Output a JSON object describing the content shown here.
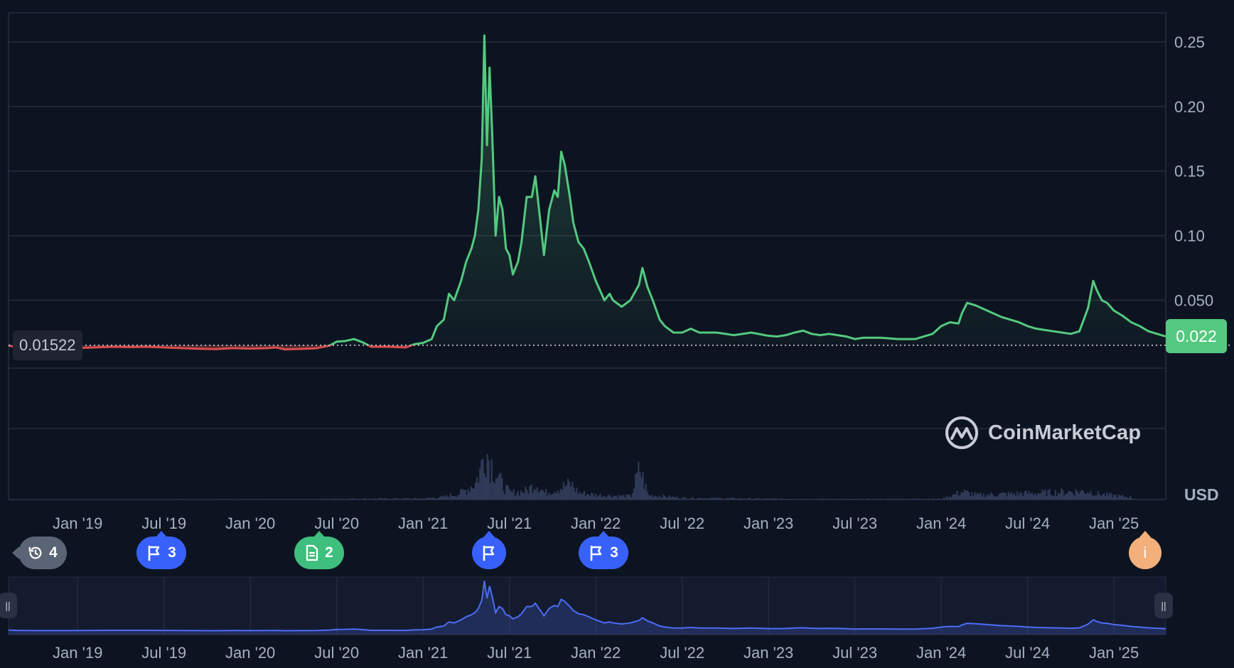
{
  "chart_data": {
    "type": "line",
    "currency_label": "USD",
    "current_price_label": "0.022",
    "start_price_label": "0.01522",
    "watermark": "CoinMarketCap",
    "y_ticks": [
      "0.25",
      "0.20",
      "0.15",
      "0.10",
      "0.050"
    ],
    "y_tick_values": [
      0.25,
      0.2,
      0.15,
      0.1,
      0.05
    ],
    "x_ticks": [
      "Jan '19",
      "Jul '19",
      "Jan '20",
      "Jul '20",
      "Jan '21",
      "Jul '21",
      "Jan '22",
      "Jul '22",
      "Jan '23",
      "Jul '23",
      "Jan '24",
      "Jul '24",
      "Jan '25"
    ],
    "x_tick_values": [
      2019.0,
      2019.5,
      2020.0,
      2020.5,
      2021.0,
      2021.5,
      2022.0,
      2022.5,
      2023.0,
      2023.5,
      2024.0,
      2024.5,
      2025.0
    ],
    "x_range": [
      2018.6,
      2025.3
    ],
    "y_range": [
      -0.0025,
      0.2725
    ],
    "baseline_value": 0.01522,
    "colors": {
      "up": "#54c97f",
      "down": "#d94d4d",
      "navigator": "#4d6cf5",
      "grid": "#262d3d",
      "volume": "#2f3a57"
    },
    "series": [
      {
        "points": [
          [
            2018.6,
            0.015
          ],
          [
            2018.65,
            0.0135
          ],
          [
            2018.7,
            0.0128
          ],
          [
            2018.8,
            0.0125
          ],
          [
            2018.9,
            0.0127
          ],
          [
            2019.0,
            0.013
          ],
          [
            2019.1,
            0.0135
          ],
          [
            2019.2,
            0.014
          ],
          [
            2019.3,
            0.0138
          ],
          [
            2019.4,
            0.014
          ],
          [
            2019.5,
            0.0135
          ],
          [
            2019.6,
            0.013
          ],
          [
            2019.7,
            0.0125
          ],
          [
            2019.8,
            0.0122
          ],
          [
            2019.9,
            0.013
          ],
          [
            2020.0,
            0.0126
          ],
          [
            2020.1,
            0.013
          ],
          [
            2020.15,
            0.0135
          ],
          [
            2020.2,
            0.012
          ],
          [
            2020.3,
            0.0124
          ],
          [
            2020.38,
            0.0128
          ],
          [
            2020.46,
            0.015
          ],
          [
            2020.5,
            0.018
          ],
          [
            2020.55,
            0.0185
          ],
          [
            2020.6,
            0.02
          ],
          [
            2020.65,
            0.0175
          ],
          [
            2020.7,
            0.014
          ],
          [
            2020.8,
            0.014
          ],
          [
            2020.9,
            0.0135
          ],
          [
            2020.95,
            0.016
          ],
          [
            2021.0,
            0.017
          ],
          [
            2021.05,
            0.02
          ],
          [
            2021.08,
            0.03
          ],
          [
            2021.12,
            0.035
          ],
          [
            2021.15,
            0.055
          ],
          [
            2021.18,
            0.05
          ],
          [
            2021.22,
            0.065
          ],
          [
            2021.25,
            0.08
          ],
          [
            2021.28,
            0.09
          ],
          [
            2021.3,
            0.1
          ],
          [
            2021.32,
            0.12
          ],
          [
            2021.34,
            0.16
          ],
          [
            2021.355,
            0.255
          ],
          [
            2021.37,
            0.17
          ],
          [
            2021.385,
            0.23
          ],
          [
            2021.4,
            0.18
          ],
          [
            2021.42,
            0.1
          ],
          [
            2021.44,
            0.13
          ],
          [
            2021.46,
            0.12
          ],
          [
            2021.48,
            0.09
          ],
          [
            2021.5,
            0.085
          ],
          [
            2021.52,
            0.07
          ],
          [
            2021.55,
            0.08
          ],
          [
            2021.57,
            0.095
          ],
          [
            2021.6,
            0.13
          ],
          [
            2021.63,
            0.13
          ],
          [
            2021.65,
            0.146
          ],
          [
            2021.68,
            0.11
          ],
          [
            2021.7,
            0.085
          ],
          [
            2021.73,
            0.12
          ],
          [
            2021.76,
            0.135
          ],
          [
            2021.78,
            0.13
          ],
          [
            2021.8,
            0.165
          ],
          [
            2021.82,
            0.155
          ],
          [
            2021.85,
            0.13
          ],
          [
            2021.87,
            0.11
          ],
          [
            2021.9,
            0.095
          ],
          [
            2021.93,
            0.09
          ],
          [
            2021.96,
            0.08
          ],
          [
            2022.0,
            0.065
          ],
          [
            2022.05,
            0.05
          ],
          [
            2022.08,
            0.055
          ],
          [
            2022.1,
            0.05
          ],
          [
            2022.15,
            0.045
          ],
          [
            2022.2,
            0.05
          ],
          [
            2022.25,
            0.062
          ],
          [
            2022.27,
            0.075
          ],
          [
            2022.3,
            0.06
          ],
          [
            2022.33,
            0.05
          ],
          [
            2022.37,
            0.035
          ],
          [
            2022.4,
            0.03
          ],
          [
            2022.45,
            0.025
          ],
          [
            2022.5,
            0.025
          ],
          [
            2022.55,
            0.028
          ],
          [
            2022.6,
            0.025
          ],
          [
            2022.7,
            0.025
          ],
          [
            2022.8,
            0.023
          ],
          [
            2022.9,
            0.025
          ],
          [
            2023.0,
            0.0225
          ],
          [
            2023.05,
            0.022
          ],
          [
            2023.1,
            0.023
          ],
          [
            2023.15,
            0.025
          ],
          [
            2023.2,
            0.0265
          ],
          [
            2023.25,
            0.024
          ],
          [
            2023.3,
            0.023
          ],
          [
            2023.35,
            0.024
          ],
          [
            2023.4,
            0.023
          ],
          [
            2023.45,
            0.022
          ],
          [
            2023.5,
            0.02
          ],
          [
            2023.55,
            0.021
          ],
          [
            2023.65,
            0.021
          ],
          [
            2023.75,
            0.02
          ],
          [
            2023.85,
            0.02
          ],
          [
            2023.95,
            0.024
          ],
          [
            2024.0,
            0.03
          ],
          [
            2024.05,
            0.033
          ],
          [
            2024.1,
            0.032
          ],
          [
            2024.12,
            0.04
          ],
          [
            2024.15,
            0.048
          ],
          [
            2024.2,
            0.046
          ],
          [
            2024.25,
            0.043
          ],
          [
            2024.3,
            0.04
          ],
          [
            2024.35,
            0.037
          ],
          [
            2024.4,
            0.035
          ],
          [
            2024.45,
            0.033
          ],
          [
            2024.5,
            0.03
          ],
          [
            2024.55,
            0.028
          ],
          [
            2024.6,
            0.027
          ],
          [
            2024.65,
            0.026
          ],
          [
            2024.7,
            0.025
          ],
          [
            2024.75,
            0.024
          ],
          [
            2024.8,
            0.026
          ],
          [
            2024.85,
            0.044
          ],
          [
            2024.88,
            0.065
          ],
          [
            2024.9,
            0.058
          ],
          [
            2024.93,
            0.05
          ],
          [
            2024.96,
            0.048
          ],
          [
            2025.0,
            0.042
          ],
          [
            2025.05,
            0.038
          ],
          [
            2025.1,
            0.033
          ],
          [
            2025.15,
            0.03
          ],
          [
            2025.2,
            0.026
          ],
          [
            2025.25,
            0.024
          ],
          [
            2025.3,
            0.022
          ]
        ]
      }
    ],
    "volume": [
      [
        2019.45,
        0.5
      ],
      [
        2020.0,
        0.6
      ],
      [
        2020.4,
        1.0
      ],
      [
        2020.5,
        1.5
      ],
      [
        2021.0,
        2.0
      ],
      [
        2021.1,
        4
      ],
      [
        2021.2,
        10
      ],
      [
        2021.25,
        18
      ],
      [
        2021.3,
        30
      ],
      [
        2021.33,
        55
      ],
      [
        2021.355,
        95
      ],
      [
        2021.38,
        70
      ],
      [
        2021.4,
        60
      ],
      [
        2021.45,
        28
      ],
      [
        2021.5,
        12
      ],
      [
        2021.6,
        16
      ],
      [
        2021.65,
        30
      ],
      [
        2021.7,
        12
      ],
      [
        2021.8,
        22
      ],
      [
        2021.85,
        28
      ],
      [
        2021.9,
        12
      ],
      [
        2022.0,
        8
      ],
      [
        2022.2,
        6
      ],
      [
        2022.25,
        55
      ],
      [
        2022.3,
        8
      ],
      [
        2022.5,
        3
      ],
      [
        2023.0,
        1.5
      ],
      [
        2023.5,
        1.0
      ],
      [
        2024.0,
        1.5
      ],
      [
        2024.12,
        14
      ],
      [
        2024.2,
        8
      ],
      [
        2024.85,
        15
      ],
      [
        2024.9,
        10
      ],
      [
        2025.1,
        4
      ]
    ]
  },
  "event_badges": [
    {
      "kind": "history",
      "label": "4"
    },
    {
      "kind": "flag",
      "label": "3"
    },
    {
      "kind": "document",
      "label": "2"
    },
    {
      "kind": "flag",
      "label": ""
    },
    {
      "kind": "flag",
      "label": "3"
    },
    {
      "kind": "info",
      "label": "i"
    }
  ],
  "navigator": {
    "x_ticks": [
      "Jan '19",
      "Jul '19",
      "Jan '20",
      "Jul '20",
      "Jan '21",
      "Jul '21",
      "Jan '22",
      "Jul '22",
      "Jan '23",
      "Jul '23",
      "Jan '24",
      "Jul '24",
      "Jan '25"
    ]
  }
}
